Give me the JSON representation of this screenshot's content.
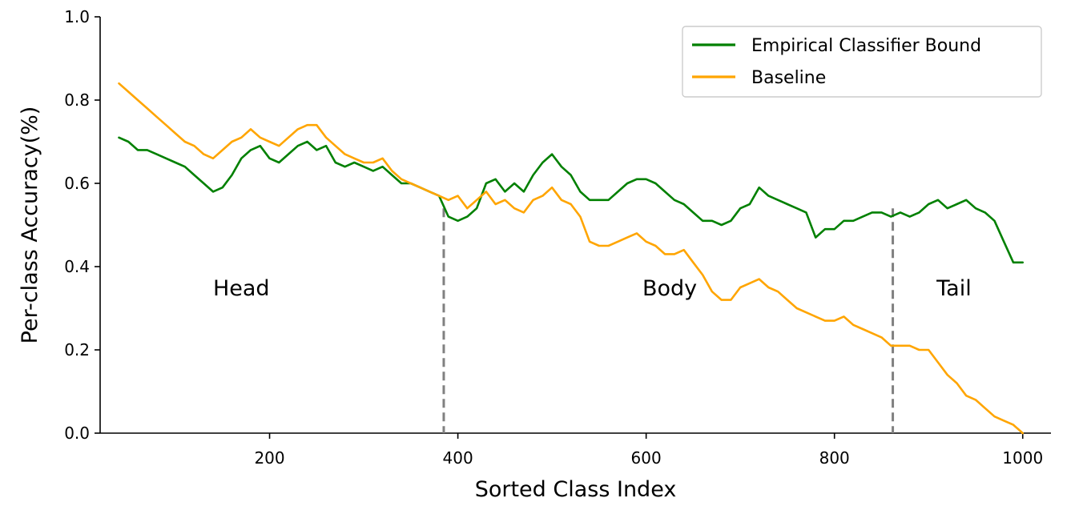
{
  "chart_data": {
    "type": "line",
    "title": "",
    "xlabel": "Sorted Class Index",
    "ylabel": "Per-class Accuracy(%)",
    "xlim": [
      20,
      1030
    ],
    "ylim": [
      0.0,
      1.0
    ],
    "xticks": [
      200,
      400,
      600,
      800,
      1000
    ],
    "xtick_labels": [
      "200",
      "400",
      "600",
      "800",
      "1000"
    ],
    "yticks": [
      0.0,
      0.2,
      0.4,
      0.6,
      0.8,
      1.0
    ],
    "ytick_labels": [
      "0.0",
      "0.2",
      "0.4",
      "0.6",
      "0.8",
      "1.0"
    ],
    "grid": false,
    "legend_position": "top-right",
    "series": [
      {
        "name": "Empirical Classifier Bound",
        "color": "#008000",
        "x": [
          40,
          50,
          60,
          70,
          80,
          90,
          100,
          110,
          120,
          130,
          140,
          150,
          160,
          170,
          180,
          190,
          200,
          210,
          220,
          230,
          240,
          250,
          260,
          270,
          280,
          290,
          300,
          310,
          320,
          330,
          340,
          350,
          360,
          370,
          380,
          390,
          400,
          410,
          420,
          430,
          440,
          450,
          460,
          470,
          480,
          490,
          500,
          510,
          520,
          530,
          540,
          550,
          560,
          570,
          580,
          590,
          600,
          610,
          620,
          630,
          640,
          650,
          660,
          670,
          680,
          690,
          700,
          710,
          720,
          730,
          740,
          750,
          760,
          770,
          780,
          790,
          800,
          810,
          820,
          830,
          840,
          850,
          860,
          870,
          880,
          890,
          900,
          910,
          920,
          930,
          940,
          950,
          960,
          970,
          980,
          990,
          1000
        ],
        "values": [
          0.71,
          0.7,
          0.68,
          0.68,
          0.67,
          0.66,
          0.65,
          0.64,
          0.62,
          0.6,
          0.58,
          0.59,
          0.62,
          0.66,
          0.68,
          0.69,
          0.66,
          0.65,
          0.67,
          0.69,
          0.7,
          0.68,
          0.69,
          0.65,
          0.64,
          0.65,
          0.64,
          0.63,
          0.64,
          0.62,
          0.6,
          0.6,
          0.59,
          0.58,
          0.57,
          0.52,
          0.51,
          0.52,
          0.54,
          0.6,
          0.61,
          0.58,
          0.6,
          0.58,
          0.62,
          0.65,
          0.67,
          0.64,
          0.62,
          0.58,
          0.56,
          0.56,
          0.56,
          0.58,
          0.6,
          0.61,
          0.61,
          0.6,
          0.58,
          0.56,
          0.55,
          0.53,
          0.51,
          0.51,
          0.5,
          0.51,
          0.54,
          0.55,
          0.59,
          0.57,
          0.56,
          0.55,
          0.54,
          0.53,
          0.47,
          0.49,
          0.49,
          0.51,
          0.51,
          0.52,
          0.53,
          0.53,
          0.52,
          0.53,
          0.52,
          0.53,
          0.55,
          0.56,
          0.54,
          0.55,
          0.56,
          0.54,
          0.53,
          0.51,
          0.46,
          0.41,
          0.41
        ]
      },
      {
        "name": "Baseline",
        "color": "#FFA500",
        "x": [
          40,
          50,
          60,
          70,
          80,
          90,
          100,
          110,
          120,
          130,
          140,
          150,
          160,
          170,
          180,
          190,
          200,
          210,
          220,
          230,
          240,
          250,
          260,
          270,
          280,
          290,
          300,
          310,
          320,
          330,
          340,
          350,
          360,
          370,
          380,
          390,
          400,
          410,
          420,
          430,
          440,
          450,
          460,
          470,
          480,
          490,
          500,
          510,
          520,
          530,
          540,
          550,
          560,
          570,
          580,
          590,
          600,
          610,
          620,
          630,
          640,
          650,
          660,
          670,
          680,
          690,
          700,
          710,
          720,
          730,
          740,
          750,
          760,
          770,
          780,
          790,
          800,
          810,
          820,
          830,
          840,
          850,
          860,
          870,
          880,
          890,
          900,
          910,
          920,
          930,
          940,
          950,
          960,
          970,
          980,
          990,
          1000
        ],
        "values": [
          0.84,
          0.82,
          0.8,
          0.78,
          0.76,
          0.74,
          0.72,
          0.7,
          0.69,
          0.67,
          0.66,
          0.68,
          0.7,
          0.71,
          0.73,
          0.71,
          0.7,
          0.69,
          0.71,
          0.73,
          0.74,
          0.74,
          0.71,
          0.69,
          0.67,
          0.66,
          0.65,
          0.65,
          0.66,
          0.63,
          0.61,
          0.6,
          0.59,
          0.58,
          0.57,
          0.56,
          0.57,
          0.54,
          0.56,
          0.58,
          0.55,
          0.56,
          0.54,
          0.53,
          0.56,
          0.57,
          0.59,
          0.56,
          0.55,
          0.52,
          0.46,
          0.45,
          0.45,
          0.46,
          0.47,
          0.48,
          0.46,
          0.45,
          0.43,
          0.43,
          0.44,
          0.41,
          0.38,
          0.34,
          0.32,
          0.32,
          0.35,
          0.36,
          0.37,
          0.35,
          0.34,
          0.32,
          0.3,
          0.29,
          0.28,
          0.27,
          0.27,
          0.28,
          0.26,
          0.25,
          0.24,
          0.23,
          0.21,
          0.21,
          0.21,
          0.2,
          0.2,
          0.17,
          0.14,
          0.12,
          0.09,
          0.08,
          0.06,
          0.04,
          0.03,
          0.02,
          0.0
        ]
      }
    ],
    "dividers": [
      {
        "x": 385,
        "y_top": 0.54,
        "color": "#808080"
      },
      {
        "x": 862,
        "y_top": 0.54,
        "color": "#808080"
      }
    ],
    "annotations": [
      {
        "text": "Head",
        "x": 170,
        "y": 0.35
      },
      {
        "text": "Body",
        "x": 625,
        "y": 0.35
      },
      {
        "text": "Tail",
        "x": 927,
        "y": 0.35
      }
    ]
  }
}
